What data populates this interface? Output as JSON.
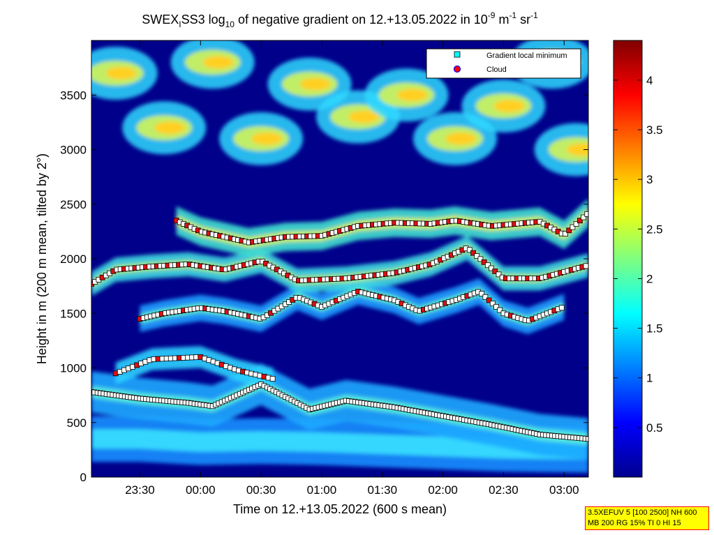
{
  "chart_data": {
    "type": "heatmap",
    "title": {
      "part1": "SWEX",
      "part1_sub": "I",
      "part2": "SS3 log",
      "part2_sub": "10",
      "part3": " of negative gradient on 12.+13.05.2022 in 10",
      "sup1": "-9",
      "part4": " m",
      "sup2": "-1",
      "part5": " sr",
      "sup3": "-1"
    },
    "xlabel": "Time on 12.+13.05.2022 (600 s mean)",
    "ylabel": "Height in m (200 m mean, tilted by 2°)",
    "x_ticks": [
      "23:30",
      "00:00",
      "00:30",
      "01:00",
      "01:30",
      "02:00",
      "02:30",
      "03:00"
    ],
    "x_range_hours": [
      23.1,
      27.2
    ],
    "y_ticks": [
      "0",
      "500",
      "1000",
      "1500",
      "2000",
      "2500",
      "3000",
      "3500"
    ],
    "y_range": [
      0,
      4000
    ],
    "colorbar": {
      "ticks": [
        "0.5",
        "1",
        "1.5",
        "2",
        "2.5",
        "3",
        "3.5",
        "4"
      ],
      "range": [
        0,
        4.4
      ],
      "colormap": "jet"
    },
    "legend": {
      "placement": "top-right",
      "entries": [
        {
          "label": "Gradient local minimum",
          "marker": "square",
          "color": "#00ffff"
        },
        {
          "label": "Cloud",
          "marker": "circle",
          "color": "#ff0000"
        }
      ]
    },
    "layers": [
      {
        "name": "ground band",
        "points": [
          [
            23.1,
            350
          ],
          [
            23.5,
            350
          ],
          [
            24.0,
            320
          ],
          [
            24.5,
            330
          ],
          [
            25.0,
            320
          ],
          [
            25.5,
            300
          ],
          [
            26.0,
            280
          ],
          [
            26.5,
            260
          ],
          [
            27.2,
            250
          ]
        ]
      },
      {
        "name": "boundary layer top",
        "points": [
          [
            23.1,
            780
          ],
          [
            23.5,
            720
          ],
          [
            23.9,
            680
          ],
          [
            24.1,
            650
          ],
          [
            24.5,
            850
          ],
          [
            24.9,
            620
          ],
          [
            25.2,
            700
          ],
          [
            25.6,
            640
          ],
          [
            26.0,
            560
          ],
          [
            26.4,
            480
          ],
          [
            26.8,
            390
          ],
          [
            27.2,
            350
          ]
        ]
      },
      {
        "name": "layer ~1000 m",
        "points": [
          [
            23.3,
            950
          ],
          [
            23.6,
            1080
          ],
          [
            24.0,
            1100
          ],
          [
            24.3,
            980
          ],
          [
            24.6,
            900
          ]
        ]
      },
      {
        "name": "layer ~1500 m",
        "points": [
          [
            23.5,
            1450
          ],
          [
            23.7,
            1500
          ],
          [
            24.0,
            1550
          ],
          [
            24.2,
            1520
          ],
          [
            24.5,
            1450
          ],
          [
            24.8,
            1650
          ],
          [
            25.0,
            1560
          ],
          [
            25.3,
            1700
          ],
          [
            25.6,
            1620
          ],
          [
            25.8,
            1520
          ],
          [
            26.1,
            1620
          ],
          [
            26.3,
            1700
          ],
          [
            26.5,
            1500
          ],
          [
            26.7,
            1430
          ],
          [
            27.0,
            1560
          ]
        ]
      },
      {
        "name": "layer ~1900 m",
        "points": [
          [
            23.1,
            1770
          ],
          [
            23.3,
            1900
          ],
          [
            23.6,
            1930
          ],
          [
            23.9,
            1950
          ],
          [
            24.2,
            1900
          ],
          [
            24.5,
            1980
          ],
          [
            24.8,
            1800
          ],
          [
            25.2,
            1820
          ],
          [
            25.6,
            1870
          ],
          [
            25.9,
            1950
          ],
          [
            26.2,
            2100
          ],
          [
            26.5,
            1820
          ],
          [
            26.8,
            1820
          ],
          [
            27.2,
            1940
          ]
        ]
      },
      {
        "name": "layer ~2200 m",
        "points": [
          [
            23.8,
            2350
          ],
          [
            24.0,
            2250
          ],
          [
            24.4,
            2150
          ],
          [
            24.7,
            2200
          ],
          [
            25.0,
            2210
          ],
          [
            25.3,
            2300
          ],
          [
            25.6,
            2330
          ],
          [
            25.9,
            2320
          ],
          [
            26.1,
            2350
          ],
          [
            26.4,
            2300
          ],
          [
            26.8,
            2340
          ],
          [
            27.0,
            2220
          ],
          [
            27.2,
            2420
          ]
        ]
      },
      {
        "name": "yellow patches",
        "points": [
          [
            23.3,
            3700
          ],
          [
            23.7,
            3200
          ],
          [
            24.1,
            3800
          ],
          [
            24.5,
            3100
          ],
          [
            24.9,
            3600
          ],
          [
            25.3,
            3300
          ],
          [
            25.7,
            3500
          ],
          [
            26.1,
            3100
          ],
          [
            26.5,
            3400
          ],
          [
            26.9,
            3800
          ],
          [
            27.1,
            3000
          ]
        ]
      }
    ]
  },
  "infobox": {
    "line1": "3.5XEFUV 5 [100 2500] NH 600",
    "line2": "MB 200 RG 15% TI 0 HI 15"
  },
  "colors": {
    "background": "#ffffff",
    "plot_background": "#00008b",
    "infobox_bg": "#ffff00",
    "infobox_border": "#ff0000"
  }
}
